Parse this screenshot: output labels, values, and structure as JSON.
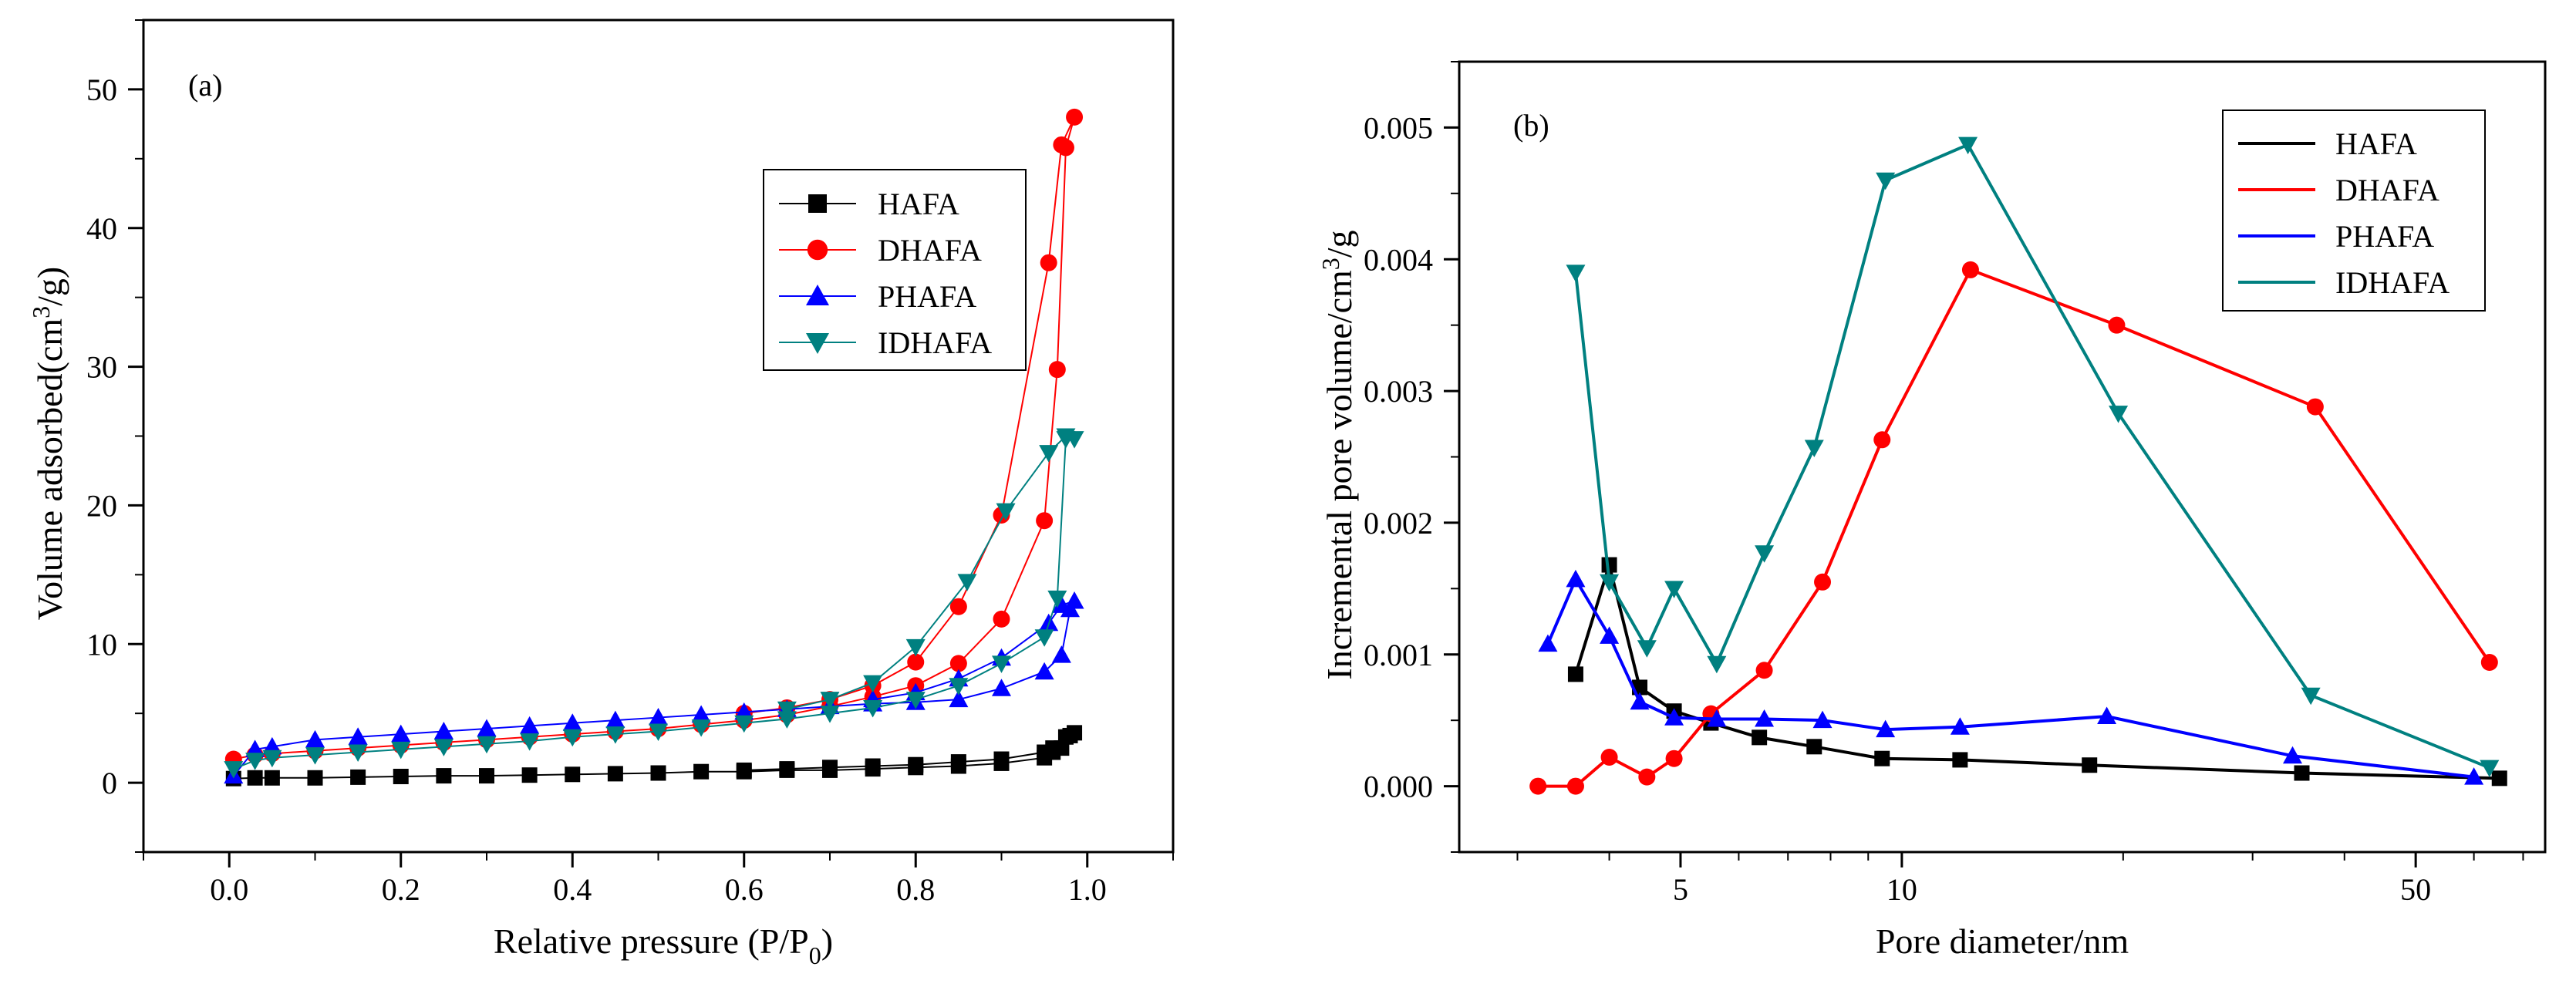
{
  "chart_data": [
    {
      "type": "scatter",
      "panel_label": "(a)",
      "xlabel": "Relative pressure (P/P",
      "xlabel_sub": "0",
      "xlabel_end": ")",
      "ylabel": "Volume adsorbed(cm",
      "ylabel_sup": "3",
      "ylabel_end": "/g)",
      "xlim": [
        -0.1,
        1.1
      ],
      "ylim": [
        -5,
        55
      ],
      "x_ticks": [
        0.0,
        0.2,
        0.4,
        0.6,
        0.8,
        1.0
      ],
      "x_tick_labels": [
        "0.0",
        "0.2",
        "0.4",
        "0.6",
        "0.8",
        "1.0"
      ],
      "y_ticks": [
        0,
        10,
        20,
        30,
        40,
        50
      ],
      "y_tick_labels": [
        "0",
        "10",
        "20",
        "30",
        "40",
        "50"
      ],
      "legend_position": "upper-right",
      "series": [
        {
          "name": "HAFA",
          "color": "#000000",
          "marker": "square",
          "x": [
            0.005,
            0.03,
            0.05,
            0.1,
            0.15,
            0.2,
            0.25,
            0.3,
            0.35,
            0.4,
            0.45,
            0.5,
            0.55,
            0.6,
            0.65,
            0.7,
            0.75,
            0.8,
            0.85,
            0.9,
            0.95,
            0.96,
            0.97,
            0.98,
            0.985,
            0.975,
            0.96,
            0.95,
            0.9,
            0.85,
            0.8,
            0.75,
            0.7,
            0.65,
            0.6
          ],
          "y": [
            0.3,
            0.35,
            0.35,
            0.35,
            0.4,
            0.45,
            0.5,
            0.5,
            0.55,
            0.6,
            0.65,
            0.7,
            0.8,
            0.8,
            0.9,
            0.9,
            1.0,
            1.1,
            1.2,
            1.4,
            1.8,
            2.2,
            2.5,
            3.4,
            3.6,
            3.3,
            2.5,
            2.2,
            1.7,
            1.5,
            1.3,
            1.2,
            1.1,
            1.0,
            0.9
          ]
        },
        {
          "name": "DHAFA",
          "color": "#ff0000",
          "marker": "circle",
          "x": [
            0.005,
            0.03,
            0.05,
            0.1,
            0.15,
            0.2,
            0.25,
            0.3,
            0.35,
            0.4,
            0.45,
            0.5,
            0.55,
            0.6,
            0.65,
            0.7,
            0.75,
            0.8,
            0.85,
            0.9,
            0.95,
            0.965,
            0.975,
            0.985,
            0.97,
            0.955,
            0.9,
            0.85,
            0.8,
            0.75,
            0.7,
            0.65,
            0.6
          ],
          "y": [
            1.7,
            2.0,
            2.1,
            2.3,
            2.5,
            2.7,
            2.9,
            3.1,
            3.3,
            3.5,
            3.7,
            3.9,
            4.2,
            4.5,
            4.9,
            5.5,
            6.2,
            7.0,
            8.6,
            11.8,
            18.9,
            29.8,
            45.8,
            48.0,
            46.0,
            37.5,
            19.3,
            12.7,
            8.7,
            7.0,
            6.0,
            5.4,
            5.0
          ]
        },
        {
          "name": "PHAFA",
          "color": "#0000ff",
          "marker": "triangle-up",
          "x": [
            0.005,
            0.03,
            0.05,
            0.1,
            0.15,
            0.2,
            0.25,
            0.3,
            0.35,
            0.4,
            0.45,
            0.5,
            0.55,
            0.6,
            0.65,
            0.7,
            0.75,
            0.8,
            0.85,
            0.9,
            0.95,
            0.97,
            0.98,
            0.985,
            0.97,
            0.955,
            0.9,
            0.85,
            0.8,
            0.75
          ],
          "y": [
            0.5,
            2.4,
            2.6,
            3.1,
            3.3,
            3.5,
            3.7,
            3.9,
            4.1,
            4.3,
            4.5,
            4.7,
            4.9,
            5.1,
            5.3,
            5.5,
            5.7,
            5.8,
            6.0,
            6.8,
            8.0,
            9.2,
            12.5,
            13.1,
            12.8,
            11.5,
            9.0,
            7.5,
            6.5,
            6.0
          ]
        },
        {
          "name": "IDHAFA",
          "color": "#008080",
          "marker": "triangle-down",
          "x": [
            0.005,
            0.03,
            0.05,
            0.1,
            0.15,
            0.2,
            0.25,
            0.3,
            0.35,
            0.4,
            0.45,
            0.5,
            0.55,
            0.6,
            0.65,
            0.7,
            0.75,
            0.8,
            0.85,
            0.9,
            0.95,
            0.965,
            0.975,
            0.985,
            0.975,
            0.955,
            0.905,
            0.86,
            0.8,
            0.75,
            0.7,
            0.65
          ],
          "y": [
            1.0,
            1.6,
            1.8,
            2.0,
            2.2,
            2.4,
            2.6,
            2.8,
            3.0,
            3.3,
            3.5,
            3.7,
            4.0,
            4.3,
            4.6,
            5.0,
            5.4,
            6.0,
            7.0,
            8.6,
            10.5,
            13.3,
            24.8,
            24.8,
            25.0,
            23.8,
            19.6,
            14.5,
            9.8,
            7.2,
            6.0,
            5.3
          ]
        }
      ]
    },
    {
      "type": "line",
      "panel_label": "(b)",
      "xlabel": "Pore diameter/nm",
      "ylabel": "Incremental pore volume/cm",
      "ylabel_sup": "3",
      "ylabel_end": "/g",
      "x_scale": "log",
      "xlim": [
        2.5,
        75
      ],
      "ylim": [
        -0.0005,
        0.0055
      ],
      "x_ticks": [
        5,
        10,
        50
      ],
      "x_tick_labels": [
        "5",
        "10",
        "50"
      ],
      "y_ticks": [
        0.0,
        0.001,
        0.002,
        0.003,
        0.004,
        0.005
      ],
      "y_tick_labels": [
        "0.000",
        "0.001",
        "0.002",
        "0.003",
        "0.004",
        "0.005"
      ],
      "legend_position": "upper-right",
      "series": [
        {
          "name": "HAFA",
          "color": "#000000",
          "marker": "square",
          "x": [
            3.6,
            4.0,
            4.4,
            4.9,
            5.5,
            6.4,
            7.6,
            9.4,
            12.0,
            18.0,
            35.0,
            65.0
          ],
          "y": [
            0.00085,
            0.00168,
            0.00075,
            0.00057,
            0.00048,
            0.00037,
            0.0003,
            0.00021,
            0.0002,
            0.00016,
            0.0001,
            6e-05
          ]
        },
        {
          "name": "DHAFA",
          "color": "#ff0000",
          "marker": "circle",
          "x": [
            3.2,
            3.6,
            4.0,
            4.5,
            4.9,
            5.5,
            6.5,
            7.8,
            9.4,
            12.4,
            19.6,
            36.5,
            63.0
          ],
          "y": [
            0.0,
            0.0,
            0.00022,
            7e-05,
            0.00021,
            0.00055,
            0.00088,
            0.00155,
            0.00263,
            0.00392,
            0.0035,
            0.00288,
            0.00094
          ]
        },
        {
          "name": "PHAFA",
          "color": "#0000ff",
          "marker": "triangle-up",
          "x": [
            3.3,
            3.6,
            4.0,
            4.4,
            4.9,
            5.6,
            6.5,
            7.8,
            9.5,
            12.0,
            19.0,
            34.0,
            60.0
          ],
          "y": [
            0.00108,
            0.00157,
            0.00114,
            0.00064,
            0.00052,
            0.00051,
            0.00051,
            0.0005,
            0.00043,
            0.00045,
            0.00053,
            0.00023,
            7e-05
          ]
        },
        {
          "name": "IDHAFA",
          "color": "#008080",
          "marker": "triangle-down",
          "x": [
            3.6,
            4.0,
            4.5,
            4.9,
            5.6,
            6.5,
            7.6,
            9.5,
            12.3,
            19.7,
            36.0,
            63.0
          ],
          "y": [
            0.0039,
            0.00155,
            0.00105,
            0.0015,
            0.00093,
            0.00177,
            0.00257,
            0.0046,
            0.00487,
            0.00283,
            0.00069,
            0.00014
          ]
        }
      ]
    }
  ]
}
